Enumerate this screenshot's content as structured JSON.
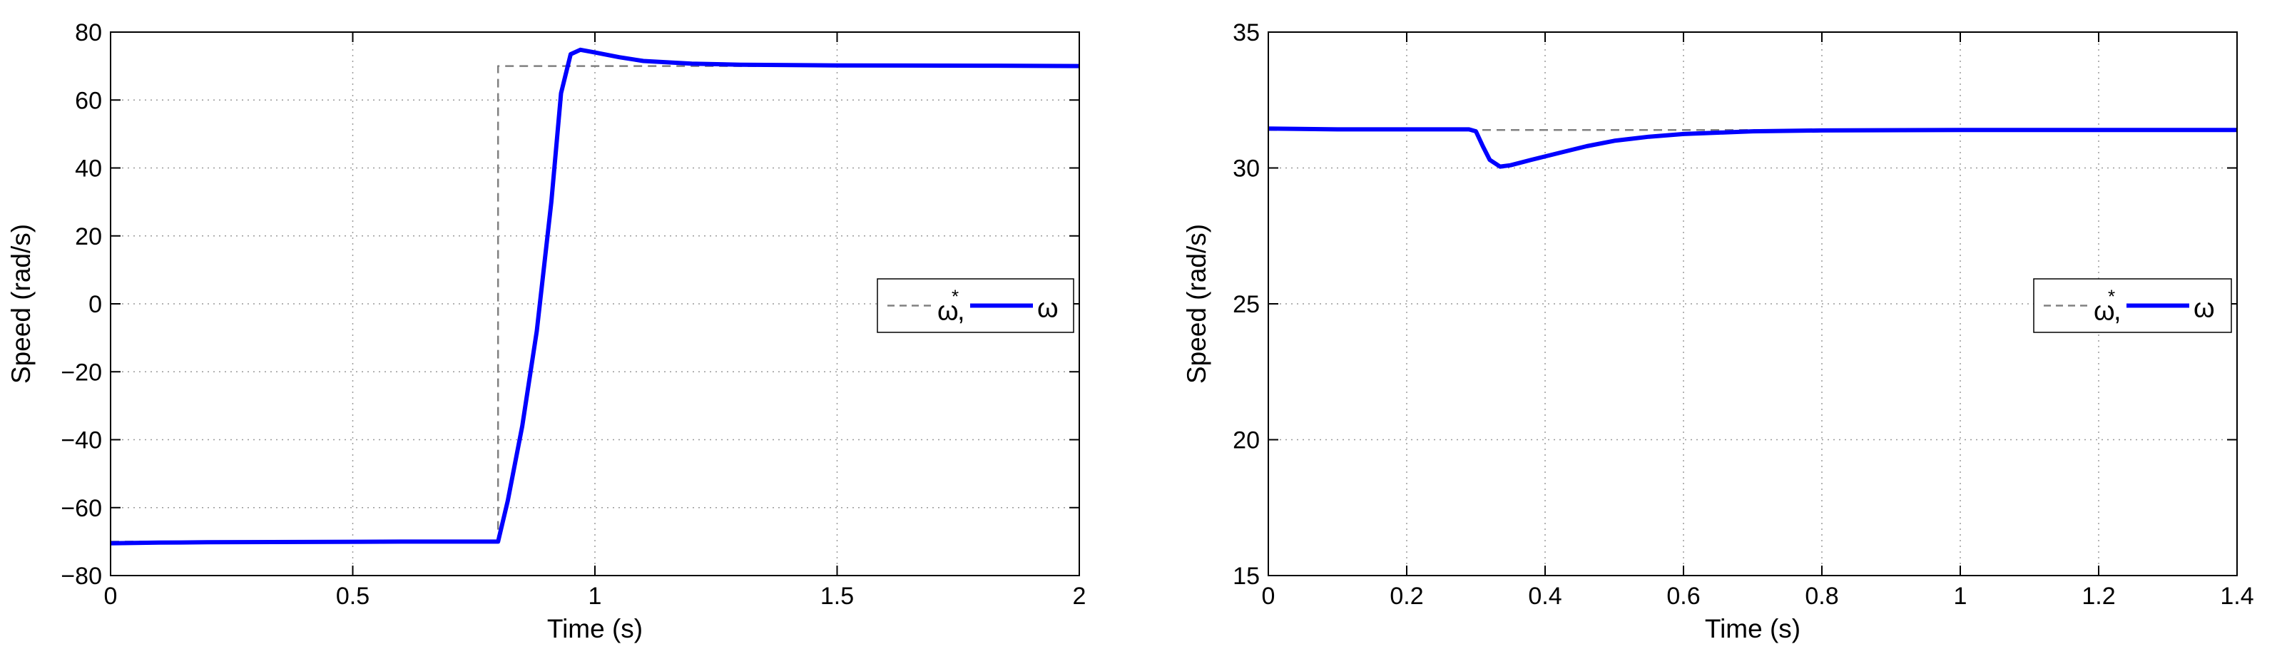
{
  "chart_data": [
    {
      "type": "line",
      "title": "",
      "xlabel": "Time (s)",
      "ylabel": "Speed (rad/s)",
      "xlim": [
        0,
        2
      ],
      "ylim": [
        -80,
        80
      ],
      "xticks": [
        0,
        0.5,
        1,
        1.5,
        2
      ],
      "yticks": [
        -80,
        -60,
        -40,
        -20,
        0,
        20,
        40,
        60,
        80
      ],
      "xtick_labels": [
        "0",
        "0.5",
        "1",
        "1.5",
        "2"
      ],
      "ytick_labels": [
        "−80",
        "−60",
        "−40",
        "−20",
        "0",
        "20",
        "40",
        "60",
        "80"
      ],
      "grid": true,
      "legend_position": "right",
      "legend_sup": "*",
      "series": [
        {
          "name": "ω",
          "legend_prefix": "ω",
          "style": "dashed",
          "color": "#808080",
          "x": [
            0,
            0.8,
            0.8,
            2
          ],
          "y": [
            -70,
            -70,
            70,
            70
          ]
        },
        {
          "name": "ω",
          "legend_prefix": ",",
          "style": "solid",
          "color": "#0000ff",
          "x": [
            0,
            0.1,
            0.2,
            0.4,
            0.6,
            0.8,
            0.82,
            0.85,
            0.88,
            0.91,
            0.93,
            0.95,
            0.97,
            1.0,
            1.05,
            1.1,
            1.2,
            1.3,
            1.5,
            1.8,
            2.0
          ],
          "y": [
            -70.5,
            -70.3,
            -70.2,
            -70.1,
            -70,
            -70,
            -58,
            -36,
            -8,
            30,
            62,
            73.5,
            74.8,
            74,
            72.6,
            71.5,
            70.7,
            70.4,
            70.2,
            70.1,
            70
          ]
        }
      ]
    },
    {
      "type": "line",
      "title": "",
      "xlabel": "Time (s)",
      "ylabel": "Speed (rad/s)",
      "xlim": [
        0,
        1.4
      ],
      "ylim": [
        15,
        35
      ],
      "xticks": [
        0,
        0.2,
        0.4,
        0.6,
        0.8,
        1,
        1.2,
        1.4
      ],
      "yticks": [
        15,
        20,
        25,
        30,
        35
      ],
      "xtick_labels": [
        "0",
        "0.2",
        "0.4",
        "0.6",
        "0.8",
        "1",
        "1.2",
        "1.4"
      ],
      "ytick_labels": [
        "15",
        "20",
        "25",
        "30",
        "35"
      ],
      "grid": true,
      "legend_position": "right",
      "legend_sup": "*",
      "series": [
        {
          "name": "ω",
          "legend_prefix": "ω",
          "style": "dashed",
          "color": "#808080",
          "x": [
            0,
            1.4
          ],
          "y": [
            31.4,
            31.4
          ]
        },
        {
          "name": "ω",
          "legend_prefix": ",",
          "style": "solid",
          "color": "#0000ff",
          "x": [
            0,
            0.1,
            0.2,
            0.29,
            0.3,
            0.31,
            0.32,
            0.335,
            0.35,
            0.38,
            0.42,
            0.46,
            0.5,
            0.55,
            0.6,
            0.65,
            0.7,
            0.8,
            1.0,
            1.2,
            1.4
          ],
          "y": [
            31.45,
            31.42,
            31.42,
            31.42,
            31.35,
            30.8,
            30.3,
            30.05,
            30.1,
            30.3,
            30.55,
            30.8,
            31.0,
            31.15,
            31.25,
            31.3,
            31.35,
            31.38,
            31.4,
            31.4,
            31.4
          ]
        }
      ]
    }
  ]
}
